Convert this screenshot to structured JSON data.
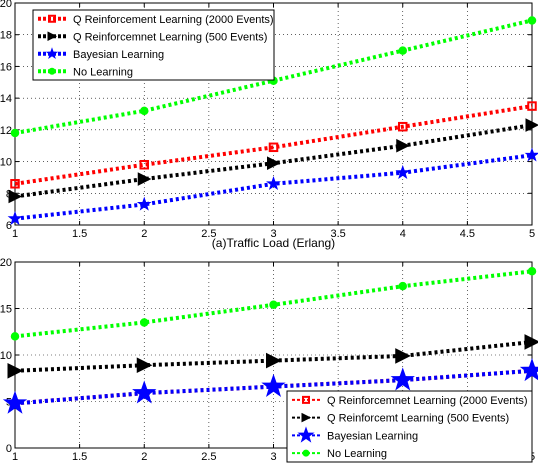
{
  "chart_data": [
    {
      "type": "line",
      "xlabel": "(a)Traffic Load (Erlang)",
      "xlim": [
        1,
        5
      ],
      "ylim": [
        6,
        20
      ],
      "x_ticks": [
        "1",
        "1.5",
        "2",
        "2.5",
        "3",
        "3.5",
        "4",
        "4.5",
        "5"
      ],
      "y_ticks": [
        "6",
        "8",
        "10",
        "12",
        "14",
        "16",
        "18",
        "20"
      ],
      "grid": true,
      "legend_position": "top-left",
      "x": [
        1,
        2,
        3,
        4,
        5
      ],
      "series": [
        {
          "name": "Q Reinforcement Learning (2000 Events)",
          "values": [
            8.6,
            9.8,
            10.9,
            12.2,
            13.5
          ],
          "color": "#ff0000",
          "marker": "square"
        },
        {
          "name": "Q Reinforcemnet Learning (500 Events)",
          "values": [
            7.8,
            8.9,
            9.9,
            11.0,
            12.3
          ],
          "color": "#000000",
          "marker": "triangle-right"
        },
        {
          "name": "Bayesian Learning",
          "values": [
            6.4,
            7.3,
            8.6,
            9.3,
            10.4
          ],
          "color": "#0000ff",
          "marker": "star"
        },
        {
          "name": "No Learning",
          "values": [
            11.8,
            13.2,
            15.1,
            17.0,
            18.9
          ],
          "color": "#00ff00",
          "marker": "circle"
        }
      ]
    },
    {
      "type": "line",
      "xlabel": "",
      "xlim": [
        1,
        5
      ],
      "ylim": [
        0,
        20
      ],
      "x_ticks": [
        "1",
        "1.5",
        "2",
        "2.5",
        "3",
        "3.5",
        "4",
        "4.5",
        "5"
      ],
      "y_ticks": [
        "0",
        "5",
        "10",
        "15",
        "20"
      ],
      "grid": true,
      "legend_position": "bottom-right",
      "x": [
        1,
        2,
        3,
        4,
        5
      ],
      "series": [
        {
          "name": "Q Reinforcemnet Learning (2000 Events)",
          "values": [
            4.8,
            5.9,
            6.6,
            7.3,
            8.3
          ],
          "color": "#ff0000",
          "marker": "square"
        },
        {
          "name": "Q Reinforcemt Learning (500 Events)",
          "values": [
            8.3,
            8.9,
            9.4,
            9.9,
            11.4
          ],
          "color": "#000000",
          "marker": "triangle-right"
        },
        {
          "name": "Bayesian Learning",
          "values": [
            4.8,
            5.9,
            6.6,
            7.3,
            8.3
          ],
          "color": "#0000ff",
          "marker": "star"
        },
        {
          "name": "No Learning",
          "values": [
            12.0,
            13.5,
            15.4,
            17.4,
            19.0
          ],
          "color": "#00ff00",
          "marker": "circle"
        }
      ]
    }
  ]
}
